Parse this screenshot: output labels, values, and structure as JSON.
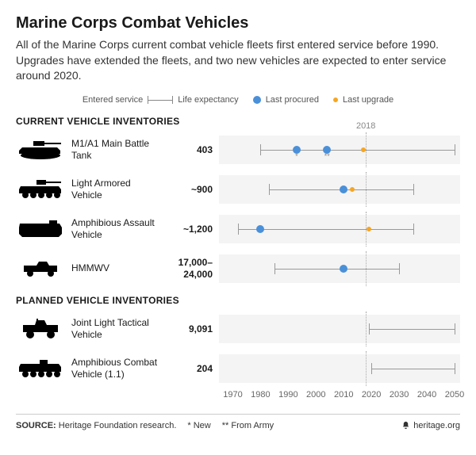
{
  "title": "Marine Corps Combat Vehicles",
  "subtitle": "All of the Marine Corps current combat vehicle fleets first entered service before 1990. Upgrades have extended the fleets, and two new vehicles are expected to enter service around 2020.",
  "colors": {
    "procured": "#4a90d9",
    "upgrade_ring": "#f5a623",
    "upgrade_fill": "#ffffff",
    "whisker": "#999999",
    "row_bg": "#f4f4f4",
    "ref_line": "#aaaaaa",
    "text": "#1a1a1a"
  },
  "legend": {
    "entered": "Entered service",
    "life": "Life expectancy",
    "procured": "Last procured",
    "upgrade": "Last upgrade"
  },
  "chart": {
    "xmin": 1965,
    "xmax": 2052,
    "ticks": [
      1970,
      1980,
      1990,
      2000,
      2010,
      2020,
      2030,
      2040,
      2050
    ],
    "ref_year": 2018,
    "ref_label": "2018"
  },
  "sections": {
    "current": "CURRENT VEHICLE INVENTORIES",
    "planned": "PLANNED VEHICLE INVENTORIES"
  },
  "vehicles": [
    {
      "id": "m1a1",
      "section": "current",
      "icon": "tank",
      "name": "M1/A1 Main Battle Tank",
      "qty": "403",
      "range": [
        1980,
        2050
      ],
      "procured": [
        {
          "year": 1993,
          "note": "*"
        },
        {
          "year": 2004,
          "note": "**"
        }
      ],
      "upgrade": 2017
    },
    {
      "id": "lav",
      "section": "current",
      "icon": "lav",
      "name": "Light Armored Vehicle",
      "qty": "~900",
      "range": [
        1983,
        2035
      ],
      "procured": [
        {
          "year": 2010
        }
      ],
      "upgrade": 2013
    },
    {
      "id": "aav",
      "section": "current",
      "icon": "aav",
      "name": "Amphibious Assault Vehicle",
      "qty": "~1,200",
      "range": [
        1972,
        2035
      ],
      "procured": [
        {
          "year": 1980
        }
      ],
      "upgrade": 2019
    },
    {
      "id": "hmmwv",
      "section": "current",
      "icon": "hmmwv",
      "name": "HMMWV",
      "qty": "17,000–24,000",
      "range": [
        1985,
        2030
      ],
      "procured": [
        {
          "year": 2010
        }
      ]
    },
    {
      "id": "jltv",
      "section": "planned",
      "icon": "jltv",
      "name": "Joint Light Tactical Vehicle",
      "qty": "9,091",
      "range": [
        2019,
        2050
      ]
    },
    {
      "id": "acv",
      "section": "planned",
      "icon": "acv",
      "name": "Amphibious Combat Vehicle (1.1)",
      "qty": "204",
      "range": [
        2020,
        2050
      ]
    }
  ],
  "footer": {
    "source_label": "SOURCE:",
    "source_text": "Heritage Foundation research.",
    "note1": "* New",
    "note2": "** From Army",
    "site": "heritage.org"
  }
}
